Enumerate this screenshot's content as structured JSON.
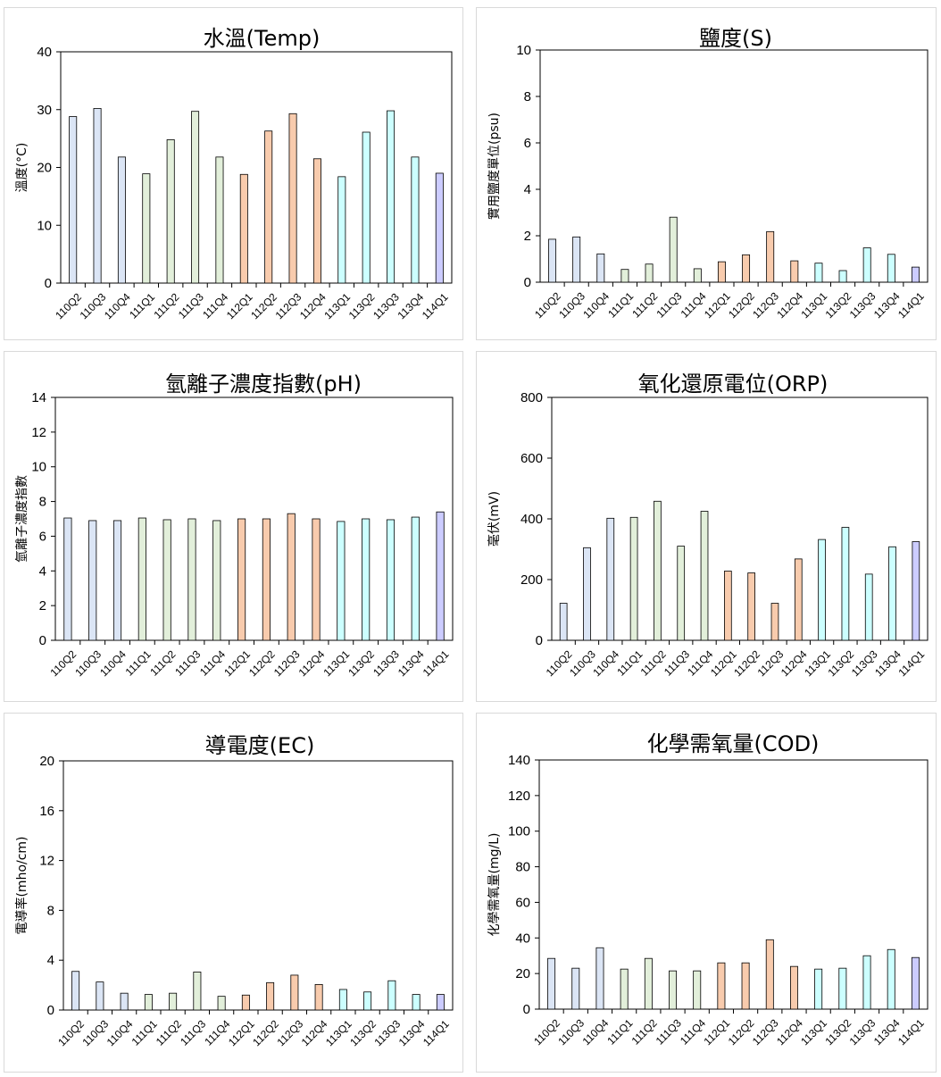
{
  "chart_data": [
    {
      "type": "bar",
      "title": "水溫(Temp)",
      "ylabel": "溫度(°C)",
      "ylim": [
        0,
        40
      ],
      "yticks": [
        0,
        10,
        20,
        30,
        40
      ],
      "categories": [
        "110Q2",
        "110Q3",
        "110Q4",
        "111Q1",
        "111Q2",
        "111Q3",
        "111Q4",
        "112Q1",
        "112Q2",
        "112Q3",
        "112Q4",
        "113Q1",
        "113Q2",
        "113Q3",
        "113Q4",
        "114Q1"
      ],
      "values": [
        28.8,
        30.2,
        21.8,
        18.9,
        24.8,
        29.7,
        21.8,
        18.8,
        26.3,
        29.3,
        21.5,
        18.4,
        26.1,
        29.8,
        21.8,
        19.0
      ],
      "colors": [
        "#dbe5f5",
        "#dbe5f5",
        "#dbe5f5",
        "#e2efda",
        "#e2efda",
        "#e2efda",
        "#e2efda",
        "#f8cbad",
        "#f8cbad",
        "#f8cbad",
        "#f8cbad",
        "#ccffff",
        "#ccffff",
        "#ccffff",
        "#ccffff",
        "#ccccff"
      ],
      "grid": false,
      "legend": "none"
    },
    {
      "type": "bar",
      "title": "鹽度(S)",
      "ylabel": "實用鹽度單位(psu)",
      "ylim": [
        0,
        10
      ],
      "yticks": [
        0,
        2,
        4,
        6,
        8,
        10
      ],
      "categories": [
        "110Q2",
        "110Q3",
        "110Q4",
        "111Q1",
        "111Q2",
        "111Q3",
        "111Q4",
        "112Q1",
        "112Q2",
        "112Q3",
        "112Q4",
        "113Q1",
        "113Q2",
        "113Q3",
        "113Q4",
        "114Q1"
      ],
      "values": [
        1.85,
        1.95,
        1.22,
        0.55,
        0.78,
        2.8,
        0.58,
        0.88,
        1.18,
        2.18,
        0.92,
        0.82,
        0.5,
        1.48,
        1.2,
        0.65
      ],
      "colors": [
        "#dbe5f5",
        "#dbe5f5",
        "#dbe5f5",
        "#e2efda",
        "#e2efda",
        "#e2efda",
        "#e2efda",
        "#f8cbad",
        "#f8cbad",
        "#f8cbad",
        "#f8cbad",
        "#ccffff",
        "#ccffff",
        "#ccffff",
        "#ccffff",
        "#ccccff"
      ],
      "grid": false,
      "legend": "none"
    },
    {
      "type": "bar",
      "title": "氫離子濃度指數(pH)",
      "ylabel": "氫離子濃度指數",
      "ylim": [
        0,
        14
      ],
      "yticks": [
        0,
        2,
        4,
        6,
        8,
        10,
        12,
        14
      ],
      "categories": [
        "110Q2",
        "110Q3",
        "110Q4",
        "111Q1",
        "111Q2",
        "111Q3",
        "111Q4",
        "112Q1",
        "112Q2",
        "112Q3",
        "112Q4",
        "113Q1",
        "113Q2",
        "113Q3",
        "113Q4",
        "114Q1"
      ],
      "values": [
        7.05,
        6.9,
        6.9,
        7.05,
        6.95,
        7.0,
        6.9,
        7.0,
        7.0,
        7.3,
        7.0,
        6.85,
        7.0,
        6.95,
        7.1,
        7.4
      ],
      "colors": [
        "#dbe5f5",
        "#dbe5f5",
        "#dbe5f5",
        "#e2efda",
        "#e2efda",
        "#e2efda",
        "#e2efda",
        "#f8cbad",
        "#f8cbad",
        "#f8cbad",
        "#f8cbad",
        "#ccffff",
        "#ccffff",
        "#ccffff",
        "#ccffff",
        "#ccccff"
      ],
      "grid": false,
      "legend": "none"
    },
    {
      "type": "bar",
      "title": "氧化還原電位(ORP)",
      "ylabel": "毫伏(mV)",
      "ylim": [
        0,
        800
      ],
      "yticks": [
        0,
        200,
        400,
        600,
        800
      ],
      "categories": [
        "110Q2",
        "110Q3",
        "110Q4",
        "111Q1",
        "111Q2",
        "111Q3",
        "111Q4",
        "112Q1",
        "112Q2",
        "112Q3",
        "112Q4",
        "113Q1",
        "113Q2",
        "113Q3",
        "113Q4",
        "114Q1"
      ],
      "values": [
        122,
        305,
        402,
        405,
        458,
        310,
        425,
        228,
        222,
        122,
        268,
        332,
        372,
        218,
        308,
        325
      ],
      "colors": [
        "#dbe5f5",
        "#dbe5f5",
        "#dbe5f5",
        "#e2efda",
        "#e2efda",
        "#e2efda",
        "#e2efda",
        "#f8cbad",
        "#f8cbad",
        "#f8cbad",
        "#f8cbad",
        "#ccffff",
        "#ccffff",
        "#ccffff",
        "#ccffff",
        "#ccccff"
      ],
      "grid": false,
      "legend": "none"
    },
    {
      "type": "bar",
      "title": "導電度(EC)",
      "ylabel": "電導率(mho/cm)",
      "ylim": [
        0,
        20
      ],
      "yticks": [
        0,
        4,
        8,
        12,
        16,
        20
      ],
      "categories": [
        "110Q2",
        "110Q3",
        "110Q4",
        "111Q1",
        "111Q2",
        "111Q3",
        "111Q4",
        "112Q1",
        "112Q2",
        "112Q3",
        "112Q4",
        "113Q1",
        "113Q2",
        "113Q3",
        "113Q4",
        "114Q1"
      ],
      "values": [
        3.1,
        2.25,
        1.35,
        1.25,
        1.35,
        3.05,
        1.1,
        1.2,
        2.2,
        2.8,
        2.05,
        1.65,
        1.45,
        2.35,
        1.25,
        1.25
      ],
      "colors": [
        "#dbe5f5",
        "#dbe5f5",
        "#dbe5f5",
        "#e2efda",
        "#e2efda",
        "#e2efda",
        "#e2efda",
        "#f8cbad",
        "#f8cbad",
        "#f8cbad",
        "#f8cbad",
        "#ccffff",
        "#ccffff",
        "#ccffff",
        "#ccffff",
        "#ccccff"
      ],
      "grid": false,
      "legend": "none"
    },
    {
      "type": "bar",
      "title": "化學需氧量(COD)",
      "ylabel": "化學需氧量(mg/L)",
      "ylim": [
        0,
        140
      ],
      "yticks": [
        0,
        20,
        40,
        60,
        80,
        100,
        120,
        140
      ],
      "categories": [
        "110Q2",
        "110Q3",
        "110Q4",
        "111Q1",
        "111Q2",
        "111Q3",
        "111Q4",
        "112Q1",
        "112Q2",
        "112Q3",
        "112Q4",
        "113Q1",
        "113Q2",
        "113Q3",
        "113Q4",
        "114Q1"
      ],
      "values": [
        28.5,
        23,
        34.5,
        22.5,
        28.5,
        21.5,
        21.5,
        26,
        26,
        39,
        24,
        22.5,
        23,
        30,
        33.5,
        29
      ],
      "colors": [
        "#dbe5f5",
        "#dbe5f5",
        "#dbe5f5",
        "#e2efda",
        "#e2efda",
        "#e2efda",
        "#e2efda",
        "#f8cbad",
        "#f8cbad",
        "#f8cbad",
        "#f8cbad",
        "#ccffff",
        "#ccffff",
        "#ccffff",
        "#ccffff",
        "#ccccff"
      ],
      "grid": false,
      "legend": "none"
    }
  ]
}
